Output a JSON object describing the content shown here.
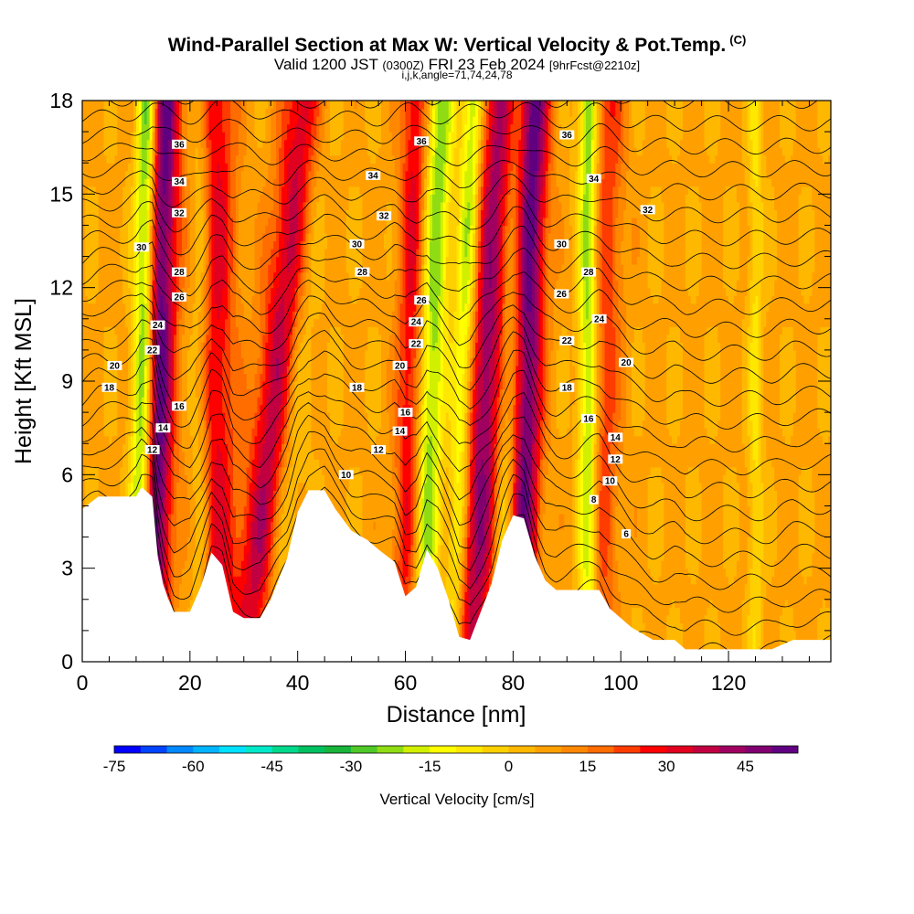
{
  "header": {
    "title": "Wind-Parallel Section at Max W: Vertical Velocity & Pot.Temp.",
    "copyright_mark": "(C)",
    "valid_prefix": "Valid 1200 JST",
    "valid_utc": "(0300Z)",
    "valid_date": "FRI 23 Feb 2024",
    "forecast_tag": "[9hrFcst@2210z]",
    "indices": "i,j,k,angle=71,74,24,78"
  },
  "chart_data": {
    "type": "heatmap",
    "xlabel": "Distance [nm]",
    "ylabel": "Height [Kft MSL]",
    "xlim": [
      0,
      139
    ],
    "ylim": [
      0,
      18
    ],
    "x_ticks": [
      "0",
      "20",
      "40",
      "60",
      "80",
      "100",
      "120"
    ],
    "y_ticks": [
      "0",
      "3",
      "6",
      "9",
      "12",
      "15",
      "18"
    ],
    "x_tick_values": [
      0,
      20,
      40,
      60,
      80,
      100,
      120
    ],
    "y_tick_values": [
      0,
      3,
      6,
      9,
      12,
      15,
      18
    ],
    "colorbar": {
      "label": "Vertical Velocity [cm/s]",
      "tick_labels": [
        "-75",
        "-60",
        "-45",
        "-30",
        "-15",
        "0",
        "15",
        "30",
        "45"
      ],
      "tick_values": [
        -75,
        -60,
        -45,
        -30,
        -15,
        0,
        15,
        30,
        45
      ],
      "range": [
        -75,
        55
      ],
      "colors": [
        "#0000ff",
        "#0044ff",
        "#0088ff",
        "#00b4ff",
        "#00e0ff",
        "#00e8c8",
        "#00d88c",
        "#00c060",
        "#18b43c",
        "#50c828",
        "#90dc14",
        "#d0f000",
        "#ffff00",
        "#ffe800",
        "#ffd000",
        "#ffb800",
        "#ffa000",
        "#ff8800",
        "#ff6c00",
        "#ff3c00",
        "#ff0000",
        "#e00020",
        "#c00040",
        "#a00060",
        "#800070",
        "#600080"
      ]
    },
    "terrain_top_kft": [
      [
        0,
        4.9
      ],
      [
        3,
        5.3
      ],
      [
        10,
        5.3
      ],
      [
        11,
        5.6
      ],
      [
        13,
        5.3
      ],
      [
        14,
        3.4
      ],
      [
        15,
        2.5
      ],
      [
        16,
        2.0
      ],
      [
        17,
        1.6
      ],
      [
        20,
        1.6
      ],
      [
        22,
        2.4
      ],
      [
        24,
        3.5
      ],
      [
        26,
        3.1
      ],
      [
        28,
        1.6
      ],
      [
        30,
        1.4
      ],
      [
        33,
        1.4
      ],
      [
        35,
        2.0
      ],
      [
        38,
        3.3
      ],
      [
        40,
        4.8
      ],
      [
        42,
        5.5
      ],
      [
        45,
        5.5
      ],
      [
        47,
        4.9
      ],
      [
        50,
        4.2
      ],
      [
        53,
        3.9
      ],
      [
        55,
        3.6
      ],
      [
        58,
        3.2
      ],
      [
        60,
        2.1
      ],
      [
        62,
        2.4
      ],
      [
        64,
        3.6
      ],
      [
        66,
        3.0
      ],
      [
        68,
        2.0
      ],
      [
        70,
        0.8
      ],
      [
        72,
        0.7
      ],
      [
        74,
        1.6
      ],
      [
        76,
        2.5
      ],
      [
        78,
        3.9
      ],
      [
        80,
        4.7
      ],
      [
        82,
        4.6
      ],
      [
        84,
        3.4
      ],
      [
        86,
        2.6
      ],
      [
        88,
        2.3
      ],
      [
        96,
        2.3
      ],
      [
        98,
        1.7
      ],
      [
        102,
        1.1
      ],
      [
        106,
        0.7
      ],
      [
        110,
        0.7
      ],
      [
        112,
        0.4
      ],
      [
        124,
        0.4
      ],
      [
        128,
        0.4
      ],
      [
        132,
        0.7
      ],
      [
        139,
        0.7
      ]
    ],
    "updrafts": [
      {
        "x": 13,
        "w": 3.0,
        "peak_cms": 50,
        "lean": 0.12
      },
      {
        "x": 25,
        "w": 3.5,
        "peak_cms": 25,
        "lean": 0.0
      },
      {
        "x": 31,
        "w": 4.0,
        "peak_cms": 35,
        "lean": 0.6
      },
      {
        "x": 60,
        "w": 2.5,
        "peak_cms": 25,
        "lean": 0.1
      },
      {
        "x": 72,
        "w": 4.0,
        "peak_cms": 40,
        "lean": 0.35
      },
      {
        "x": 81,
        "w": 3.0,
        "peak_cms": 48,
        "lean": 0.15
      },
      {
        "x": 96,
        "w": 3.0,
        "peak_cms": 18,
        "lean": 0.1
      }
    ],
    "downdrafts": [
      {
        "x": 10.5,
        "w": 2.0,
        "peak_cms": -45,
        "lean": 0.1
      },
      {
        "x": 22,
        "w": 1.8,
        "peak_cms": -12,
        "lean": 0.0
      },
      {
        "x": 35,
        "w": 3.0,
        "peak_cms": -15,
        "lean": 0.5
      },
      {
        "x": 63,
        "w": 2.5,
        "peak_cms": -30,
        "lean": 0.2
      },
      {
        "x": 69,
        "w": 2.0,
        "peak_cms": -30,
        "lean": 0.2
      },
      {
        "x": 78,
        "w": 2.5,
        "peak_cms": -28,
        "lean": 0.15
      },
      {
        "x": 94,
        "w": 1.8,
        "peak_cms": -32,
        "lean": 0.0
      },
      {
        "x": 125,
        "w": 1.3,
        "peak_cms": -12,
        "lean": 0.0
      }
    ],
    "theta_contours": {
      "base_kft": 0.0,
      "spacing_kft": 0.75,
      "count": 30
    },
    "contour_labels": [
      {
        "text": "36",
        "x": 18,
        "y": 16.6
      },
      {
        "text": "34",
        "x": 18,
        "y": 15.4
      },
      {
        "text": "32",
        "x": 18,
        "y": 14.4
      },
      {
        "text": "30",
        "x": 11,
        "y": 13.3
      },
      {
        "text": "28",
        "x": 18,
        "y": 12.5
      },
      {
        "text": "26",
        "x": 18,
        "y": 11.7
      },
      {
        "text": "24",
        "x": 14,
        "y": 10.8
      },
      {
        "text": "22",
        "x": 13,
        "y": 10.0
      },
      {
        "text": "20",
        "x": 6,
        "y": 9.5
      },
      {
        "text": "18",
        "x": 5,
        "y": 8.8
      },
      {
        "text": "16",
        "x": 18,
        "y": 8.2
      },
      {
        "text": "14",
        "x": 15,
        "y": 7.5
      },
      {
        "text": "12",
        "x": 13,
        "y": 6.8
      },
      {
        "text": "36",
        "x": 63,
        "y": 16.7
      },
      {
        "text": "34",
        "x": 54,
        "y": 15.6
      },
      {
        "text": "32",
        "x": 56,
        "y": 14.3
      },
      {
        "text": "30",
        "x": 51,
        "y": 13.4
      },
      {
        "text": "28",
        "x": 52,
        "y": 12.5
      },
      {
        "text": "26",
        "x": 63,
        "y": 11.6
      },
      {
        "text": "24",
        "x": 62,
        "y": 10.9
      },
      {
        "text": "22",
        "x": 62,
        "y": 10.2
      },
      {
        "text": "20",
        "x": 59,
        "y": 9.5
      },
      {
        "text": "18",
        "x": 51,
        "y": 8.8
      },
      {
        "text": "16",
        "x": 60,
        "y": 8.0
      },
      {
        "text": "14",
        "x": 59,
        "y": 7.4
      },
      {
        "text": "12",
        "x": 55,
        "y": 6.8
      },
      {
        "text": "10",
        "x": 49,
        "y": 6.0
      },
      {
        "text": "36",
        "x": 90,
        "y": 16.9
      },
      {
        "text": "34",
        "x": 95,
        "y": 15.5
      },
      {
        "text": "32",
        "x": 105,
        "y": 14.5
      },
      {
        "text": "30",
        "x": 89,
        "y": 13.4
      },
      {
        "text": "28",
        "x": 94,
        "y": 12.5
      },
      {
        "text": "26",
        "x": 89,
        "y": 11.8
      },
      {
        "text": "24",
        "x": 96,
        "y": 11.0
      },
      {
        "text": "22",
        "x": 90,
        "y": 10.3
      },
      {
        "text": "20",
        "x": 101,
        "y": 9.6
      },
      {
        "text": "18",
        "x": 90,
        "y": 8.8
      },
      {
        "text": "16",
        "x": 94,
        "y": 7.8
      },
      {
        "text": "14",
        "x": 99,
        "y": 7.2
      },
      {
        "text": "12",
        "x": 99,
        "y": 6.5
      },
      {
        "text": "10",
        "x": 98,
        "y": 5.8
      },
      {
        "text": "8",
        "x": 95,
        "y": 5.2
      },
      {
        "text": "6",
        "x": 101,
        "y": 4.1
      }
    ]
  }
}
